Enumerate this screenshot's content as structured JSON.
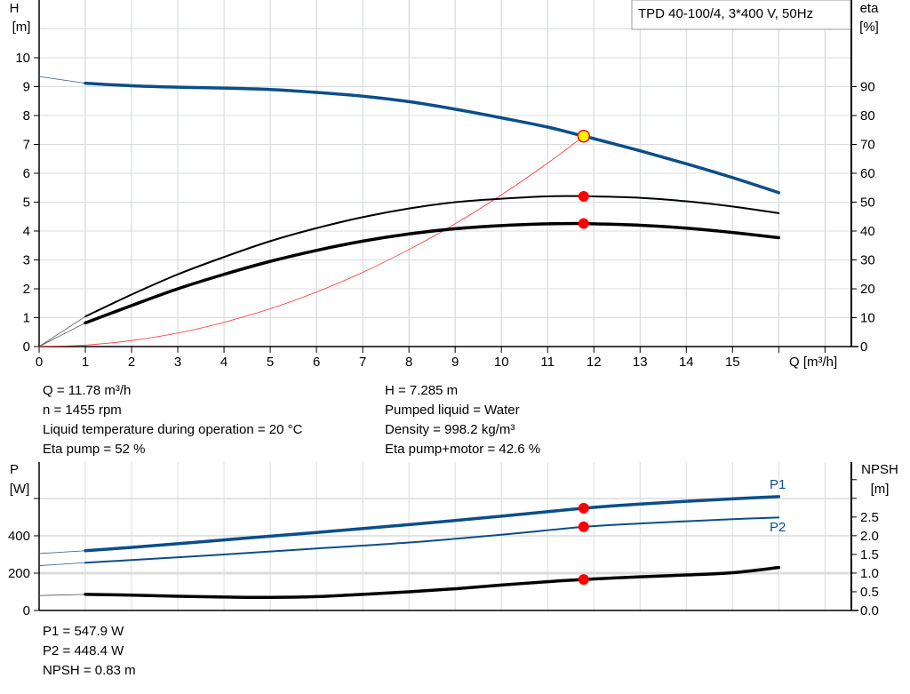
{
  "chart_data": [
    {
      "type": "line",
      "title": "TPD 40-100/4, 3*400 V, 50Hz",
      "xlabel": "Q [m³/h]",
      "ylabel": [
        "H",
        "[m]"
      ],
      "y2label": [
        "eta",
        "[%]"
      ],
      "xlim": [
        0,
        17.57
      ],
      "ylim": [
        0,
        12
      ],
      "y2lim": [
        0,
        120
      ],
      "xticks": [
        "0",
        "1",
        "2",
        "3",
        "4",
        "5",
        "6",
        "7",
        "8",
        "9",
        "10",
        "11",
        "12",
        "13",
        "14",
        "15"
      ],
      "yticks": [
        "0",
        "1",
        "2",
        "3",
        "4",
        "5",
        "6",
        "7",
        "8",
        "9",
        "10"
      ],
      "y2ticks": [
        "0",
        "10",
        "20",
        "30",
        "40",
        "50",
        "60",
        "70",
        "80",
        "90"
      ],
      "grid": true,
      "colors": {
        "head": "#0b4e8a",
        "eta": "#000000",
        "system": "#ff3030",
        "marker": "#ff0000",
        "duty_point": "#ffff00"
      },
      "series": [
        {
          "id": "head",
          "axis": "left",
          "x": [
            0,
            1,
            2,
            3,
            4,
            5,
            6,
            7,
            8,
            9,
            10,
            11,
            11.78,
            12,
            13,
            14,
            15,
            16
          ],
          "y": [
            9.35,
            9.12,
            9.03,
            8.98,
            8.95,
            8.9,
            8.8,
            8.67,
            8.48,
            8.22,
            7.92,
            7.6,
            7.285,
            7.2,
            6.78,
            6.33,
            5.85,
            5.33
          ]
        },
        {
          "id": "eta_pump",
          "axis": "right",
          "x": [
            0,
            1,
            2,
            3,
            4,
            5,
            6,
            7,
            8,
            9,
            10,
            11,
            11.78,
            12,
            13,
            14,
            15,
            16
          ],
          "y": [
            0,
            10.4,
            18,
            25,
            31,
            36.5,
            41,
            44.8,
            47.8,
            50,
            51.2,
            52,
            52.1,
            52,
            51.5,
            50.3,
            48.5,
            46.2
          ]
        },
        {
          "id": "eta_pump_motor",
          "axis": "right",
          "x": [
            0,
            1,
            2,
            3,
            4,
            5,
            6,
            7,
            8,
            9,
            10,
            11,
            11.78,
            12,
            13,
            14,
            15,
            16
          ],
          "y": [
            0,
            8.2,
            14.2,
            20,
            25,
            29.5,
            33.3,
            36.5,
            39,
            40.8,
            41.9,
            42.5,
            42.6,
            42.5,
            42,
            41,
            39.5,
            37.7
          ]
        },
        {
          "id": "system_curve",
          "axis": "left",
          "x": [
            0,
            1,
            2,
            3,
            4,
            5,
            6,
            7,
            8,
            9,
            10,
            11,
            11.78
          ],
          "y": [
            0,
            0.05,
            0.21,
            0.47,
            0.84,
            1.31,
            1.89,
            2.57,
            3.36,
            4.25,
            5.25,
            6.35,
            7.285
          ]
        }
      ],
      "duty_point": {
        "q": 11.78,
        "h": 7.285,
        "eta_pump": 52,
        "eta_pump_motor": 42.6
      }
    },
    {
      "type": "line",
      "xlim": [
        0,
        17.57
      ],
      "ylabel": [
        "P",
        "[W]"
      ],
      "y2label": [
        "NPSH",
        "[m]"
      ],
      "ylim": [
        0,
        795
      ],
      "y2lim": [
        0,
        3.97
      ],
      "yticks": [
        "0",
        "200",
        "400"
      ],
      "y2ticks": [
        "0.0",
        "0.5",
        "1.0",
        "1.5",
        "2.0",
        "2.5"
      ],
      "grid": true,
      "series": [
        {
          "id": "p1",
          "name": "P1",
          "axis": "left",
          "x": [
            0,
            1,
            2,
            4,
            6,
            8,
            10,
            11.78,
            13,
            14,
            15,
            16
          ],
          "y": [
            305,
            320,
            338,
            378,
            418,
            460,
            505,
            548,
            570,
            585,
            598,
            610
          ]
        },
        {
          "id": "p2",
          "name": "P2",
          "axis": "left",
          "x": [
            0,
            1,
            2,
            4,
            6,
            8,
            10,
            11.78,
            13,
            14,
            15,
            16
          ],
          "y": [
            240,
            256,
            270,
            300,
            332,
            364,
            406,
            448,
            466,
            478,
            489,
            498
          ]
        },
        {
          "id": "npsh",
          "axis": "right",
          "x": [
            0,
            1,
            2,
            3,
            4,
            5,
            6,
            7,
            8,
            9,
            10,
            11,
            11.78,
            13,
            14,
            15,
            16
          ],
          "y": [
            0.4,
            0.43,
            0.41,
            0.38,
            0.36,
            0.35,
            0.37,
            0.43,
            0.5,
            0.58,
            0.68,
            0.77,
            0.83,
            0.9,
            0.95,
            1.01,
            1.15
          ]
        }
      ],
      "duty_point": {
        "q": 11.78,
        "p1": 547.9,
        "p2": 448.4,
        "npsh": 0.83
      }
    }
  ],
  "info": {
    "q": "Q = 11.78 m³/h",
    "n": "n = 1455 rpm",
    "temp": "Liquid temperature during operation = 20 °C",
    "eta_pump": "Eta pump = 52 %",
    "h": "H = 7.285 m",
    "liquid": "Pumped liquid = Water",
    "density": "Density = 998.2 kg/m³",
    "eta_total": "Eta pump+motor = 42.6 %",
    "p1": "P1 = 547.9 W",
    "p2": "P2 = 448.4 W",
    "npsh": "NPSH = 0.83 m"
  }
}
